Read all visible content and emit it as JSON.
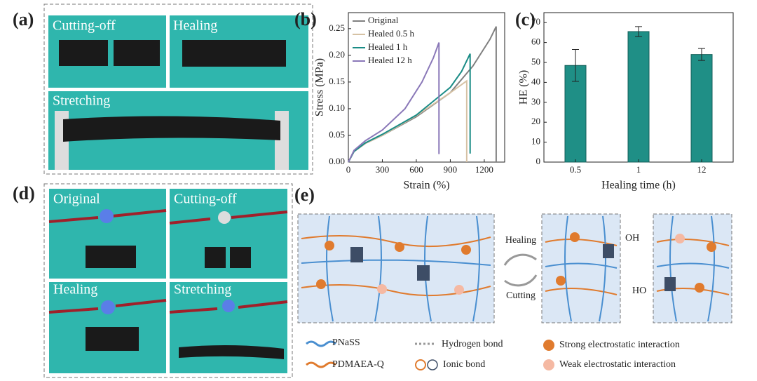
{
  "panels": {
    "a": {
      "label": "(a)",
      "photos": [
        "Cutting-off",
        "Healing",
        "Stretching"
      ]
    },
    "d": {
      "label": "(d)",
      "photos": [
        "Original",
        "Cutting-off",
        "Healing",
        "Stretching"
      ]
    },
    "b": {
      "label": "(b)"
    },
    "c": {
      "label": "(c)"
    },
    "e": {
      "label": "(e)",
      "arrows": [
        "Healing",
        "Cutting"
      ],
      "groups": [
        "OH",
        "HO"
      ],
      "legend": [
        "PNaSS",
        "PDMAEA-Q",
        "Hydrogen bond",
        "Ionic bond",
        "Strong electrostatic interaction",
        "Weak electrostatic interaction"
      ]
    }
  },
  "chart_data": [
    {
      "type": "line",
      "x_label": "Strain (%)",
      "y_label": "Stress (MPa)",
      "xlim": [
        0,
        1380
      ],
      "ylim": [
        0,
        0.28
      ],
      "xticks": [
        0,
        300,
        600,
        900,
        1200
      ],
      "yticks": [
        {
          "value": 0,
          "label": "0.00"
        },
        {
          "value": 0.05,
          "label": "0.05"
        },
        {
          "value": 0.1,
          "label": "0.10"
        },
        {
          "value": 0.15,
          "label": "0.15"
        },
        {
          "value": 0.2,
          "label": "0.20"
        },
        {
          "value": 0.25,
          "label": "0.25"
        }
      ],
      "series": [
        {
          "name": "Original",
          "color": "#808080",
          "x": [
            0,
            50,
            150,
            300,
            600,
            900,
            1100,
            1250,
            1305,
            1305
          ],
          "values": [
            0,
            0.02,
            0.035,
            0.05,
            0.085,
            0.13,
            0.18,
            0.23,
            0.254,
            0
          ]
        },
        {
          "name": "Healed 0.5 h",
          "color": "#d6c2a4",
          "x": [
            0,
            50,
            150,
            300,
            600,
            900,
            1045,
            1045
          ],
          "values": [
            0,
            0.02,
            0.035,
            0.05,
            0.087,
            0.13,
            0.152,
            0
          ]
        },
        {
          "name": "Healed 1 h",
          "color": "#1a8c86",
          "x": [
            0,
            50,
            150,
            300,
            600,
            900,
            1000,
            1075,
            1075
          ],
          "values": [
            0,
            0.02,
            0.036,
            0.052,
            0.088,
            0.14,
            0.17,
            0.203,
            0.016
          ]
        },
        {
          "name": "Healed 12 h",
          "color": "#8a78b8",
          "x": [
            0,
            50,
            150,
            300,
            500,
            650,
            750,
            800,
            800
          ],
          "values": [
            0,
            0.022,
            0.04,
            0.06,
            0.1,
            0.15,
            0.195,
            0.224,
            0.015
          ]
        }
      ]
    },
    {
      "type": "bar",
      "x_label": "Healing time (h)",
      "y_label": "HE (%)",
      "categories": [
        "0.5",
        "1",
        "12"
      ],
      "values": [
        48.5,
        65.5,
        54
      ],
      "errors": [
        8,
        2.5,
        3
      ],
      "color": "#1f8f86",
      "ylim": [
        0,
        75
      ],
      "yticks": [
        0,
        10,
        20,
        30,
        40,
        50,
        60,
        70
      ]
    }
  ]
}
